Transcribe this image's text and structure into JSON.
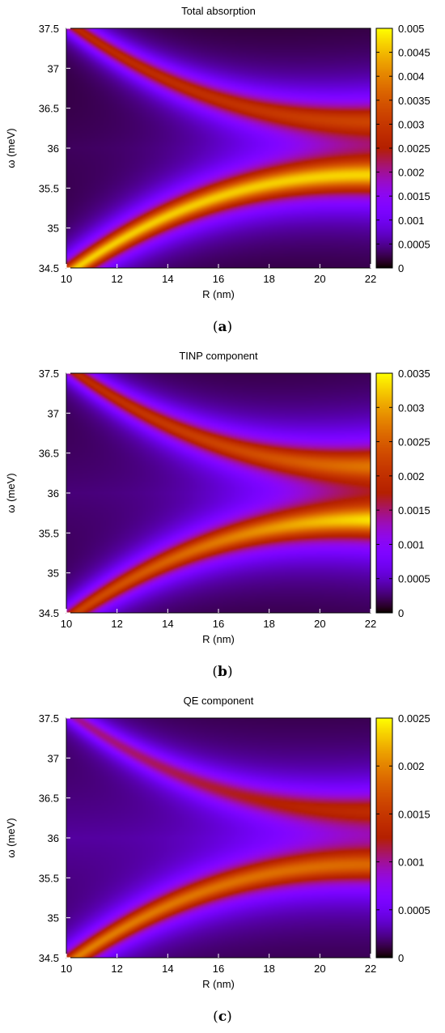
{
  "chart_data": [
    {
      "type": "heatmap",
      "panel": "a",
      "caption_letter": "a",
      "title": "Total absorption",
      "xlabel": "R (nm)",
      "ylabel": "ω (meV)",
      "xlim": [
        10,
        22
      ],
      "ylim": [
        34.5,
        37.5
      ],
      "xticks": [
        "10",
        "12",
        "14",
        "16",
        "18",
        "20",
        "22"
      ],
      "yticks": [
        "34.5",
        "35",
        "35.5",
        "36",
        "36.5",
        "37",
        "37.5"
      ],
      "cbar_range": [
        0,
        0.005
      ],
      "cbar_ticks": [
        "0",
        "0.0005",
        "0.001",
        "0.0015",
        "0.002",
        "0.0025",
        "0.003",
        "0.0035",
        "0.004",
        "0.0045",
        "0.005"
      ],
      "colormap": "gnuplot-default (black-purple-red-orange-yellow)",
      "upper_branch": {
        "peak": 0.0026,
        "end_peak": 0.0027
      },
      "lower_branch": {
        "peak": 0.0046,
        "end_peak": 0.0043
      },
      "grid": false
    },
    {
      "type": "heatmap",
      "panel": "b",
      "caption_letter": "b",
      "title": "TINP component",
      "xlabel": "R (nm)",
      "ylabel": "ω (meV)",
      "xlim": [
        10,
        22
      ],
      "ylim": [
        34.5,
        37.5
      ],
      "xticks": [
        "10",
        "12",
        "14",
        "16",
        "18",
        "20",
        "22"
      ],
      "yticks": [
        "34.5",
        "35",
        "35.5",
        "36",
        "36.5",
        "37",
        "37.5"
      ],
      "cbar_range": [
        0,
        0.0035
      ],
      "cbar_ticks": [
        "0",
        "0.0005",
        "0.001",
        "0.0015",
        "0.002",
        "0.0025",
        "0.003",
        "0.0035"
      ],
      "colormap": "gnuplot-default (black-purple-red-orange-yellow)",
      "upper_branch": {
        "peak": 0.0018,
        "end_peak": 0.0023
      },
      "lower_branch": {
        "peak": 0.0021,
        "end_peak": 0.003
      },
      "grid": false
    },
    {
      "type": "heatmap",
      "panel": "c",
      "caption_letter": "c",
      "title": "QE component",
      "xlabel": "R (nm)",
      "ylabel": "ω (meV)",
      "xlim": [
        10,
        22
      ],
      "ylim": [
        34.5,
        37.5
      ],
      "xticks": [
        "10",
        "12",
        "14",
        "16",
        "18",
        "20",
        "22"
      ],
      "yticks": [
        "34.5",
        "35",
        "35.5",
        "36",
        "36.5",
        "37",
        "37.5"
      ],
      "cbar_range": [
        0,
        0.0025
      ],
      "cbar_ticks": [
        "0",
        "0.0005",
        "0.001",
        "0.0015",
        "0.002",
        "0.0025"
      ],
      "colormap": "gnuplot-default (black-purple-red-orange-yellow)",
      "upper_branch": {
        "peak": 0.0009,
        "end_peak": 0.0011
      },
      "lower_branch": {
        "peak": 0.0019,
        "end_peak": 0.0016
      },
      "grid": false
    }
  ]
}
